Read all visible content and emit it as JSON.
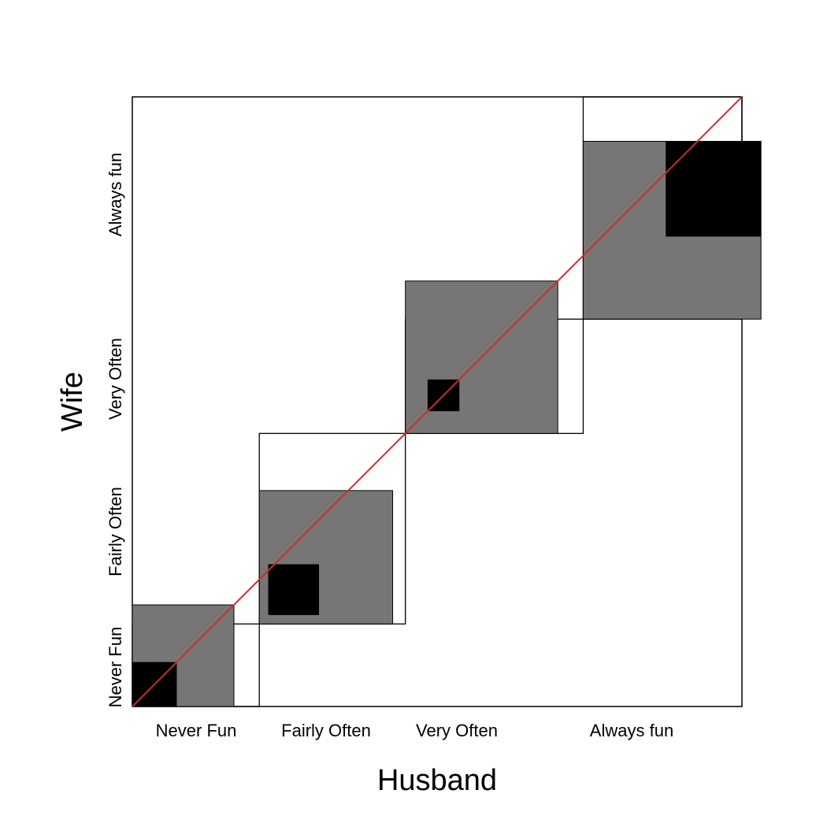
{
  "chart_data": {
    "type": "agreement",
    "xlabel": "Husband",
    "ylabel": "Wife",
    "categories": [
      "Never Fun",
      "Fairly Often",
      "Very Often",
      "Always fun"
    ],
    "row_totals_husband": [
      20,
      23,
      28,
      25
    ],
    "col_totals_wife": [
      13,
      30,
      18,
      35
    ],
    "exact_agreement": [
      7,
      8,
      5,
      15
    ],
    "partial_agreement": [
      16,
      21,
      24,
      28
    ],
    "total": 96,
    "diagonal_reference_line": true,
    "colors": {
      "frame": "#000000",
      "partial_fill": "#767676",
      "exact_fill": "#000000",
      "diagonal": "#d62728"
    }
  }
}
